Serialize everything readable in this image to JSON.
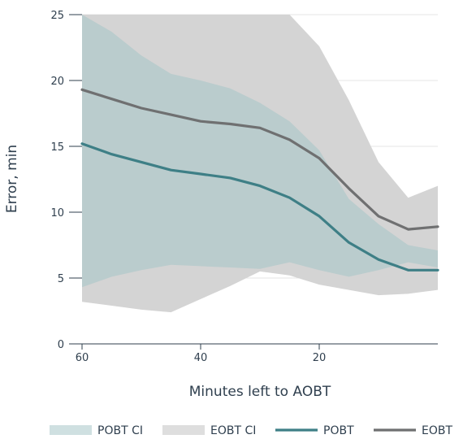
{
  "chart_data": {
    "type": "area",
    "title": "",
    "xlabel": "Minutes left to AOBT",
    "ylabel": "Error, min",
    "xlim": [
      60,
      0
    ],
    "ylim": [
      0,
      25
    ],
    "x_ticks": [
      60,
      40,
      20
    ],
    "y_ticks": [
      0,
      5,
      10,
      15,
      20,
      25
    ],
    "grid": "horizontal",
    "legend_position": "bottom",
    "x": [
      60,
      55,
      50,
      45,
      40,
      35,
      30,
      25,
      20,
      15,
      10,
      5,
      0
    ],
    "series": [
      {
        "name": "POBT",
        "kind": "line",
        "color": "#3e7f86",
        "values": [
          15.2,
          14.4,
          13.8,
          13.2,
          12.9,
          12.6,
          12.0,
          11.1,
          9.7,
          7.7,
          6.4,
          5.6,
          5.6
        ]
      },
      {
        "name": "EOBT",
        "kind": "line",
        "color": "#6f7071",
        "values": [
          19.3,
          18.6,
          17.9,
          17.4,
          16.9,
          16.7,
          16.4,
          15.5,
          14.1,
          11.8,
          9.7,
          8.7,
          8.9
        ]
      }
    ],
    "bands": [
      {
        "name": "POBT CI",
        "color": "#c0d6d8",
        "lower": [
          4.3,
          5.1,
          5.6,
          6.0,
          5.9,
          5.8,
          5.7,
          6.2,
          5.6,
          5.1,
          5.6,
          6.2,
          5.8
        ],
        "upper": [
          25.0,
          23.7,
          21.9,
          20.5,
          20.0,
          19.4,
          18.3,
          16.9,
          14.7,
          11.0,
          9.1,
          7.5,
          7.1
        ]
      },
      {
        "name": "EOBT CI",
        "color": "#d4d4d4",
        "lower": [
          3.2,
          2.9,
          2.6,
          2.4,
          3.4,
          4.4,
          5.5,
          5.2,
          4.5,
          4.1,
          3.7,
          3.8,
          4.1
        ],
        "upper": [
          25.0,
          25.0,
          25.0,
          25.0,
          25.0,
          25.0,
          25.0,
          25.0,
          22.6,
          18.5,
          13.8,
          11.1,
          12.0
        ]
      }
    ],
    "legend": [
      "POBT CI",
      "EOBT CI",
      "POBT",
      "EOBT"
    ]
  }
}
